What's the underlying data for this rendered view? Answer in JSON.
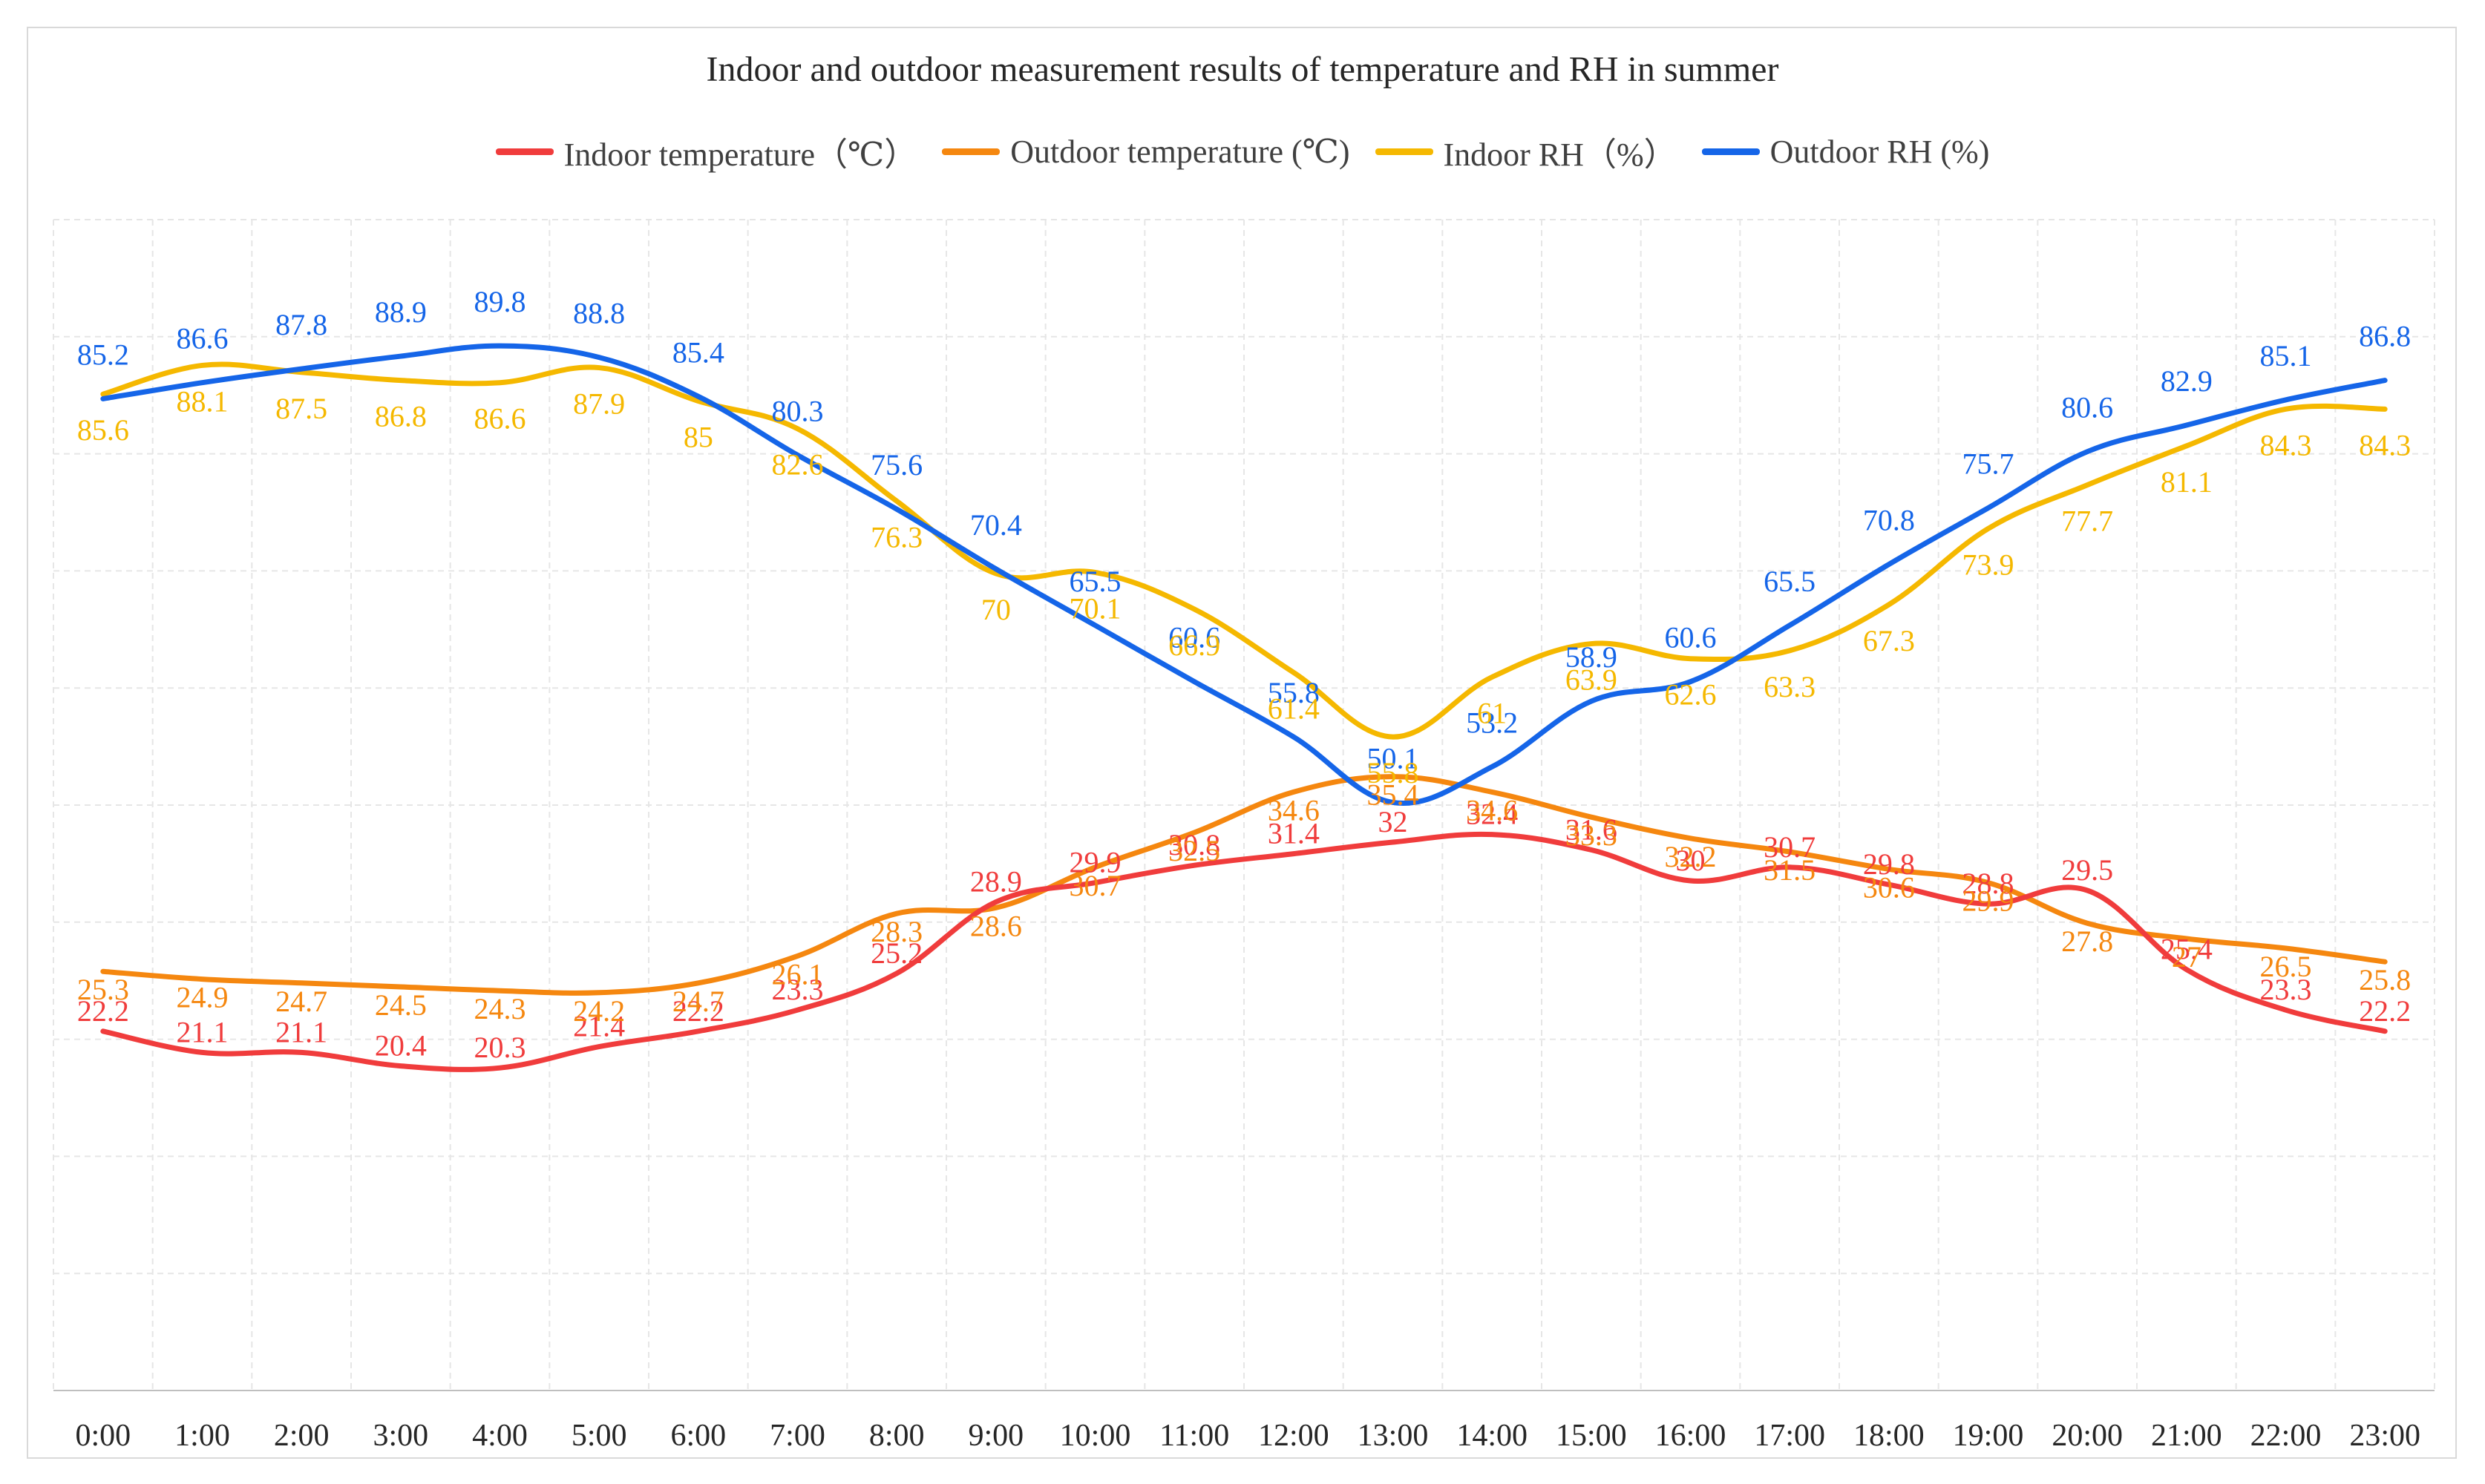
{
  "chart_data": {
    "type": "line",
    "title": "Indoor and outdoor measurement results of temperature and RH in summer",
    "xlabel": "",
    "ylabel": "",
    "categories": [
      "0:00",
      "1:00",
      "2:00",
      "3:00",
      "4:00",
      "5:00",
      "6:00",
      "7:00",
      "8:00",
      "9:00",
      "10:00",
      "11:00",
      "12:00",
      "13:00",
      "14:00",
      "15:00",
      "16:00",
      "17:00",
      "18:00",
      "19:00",
      "20:00",
      "21:00",
      "22:00",
      "23:00"
    ],
    "series": [
      {
        "name": "Indoor temperature（℃）",
        "color": "#f03c3c",
        "values": [
          22.2,
          21.1,
          21.1,
          20.4,
          20.3,
          21.4,
          22.2,
          23.3,
          25.2,
          28.9,
          29.9,
          30.8,
          31.4,
          32,
          32.4,
          31.6,
          30,
          30.7,
          29.8,
          28.8,
          29.5,
          25.4,
          23.3,
          22.2
        ]
      },
      {
        "name": "Outdoor temperature (℃)",
        "color": "#f5870f",
        "values": [
          25.3,
          24.9,
          24.7,
          24.5,
          24.3,
          24.2,
          24.7,
          26.1,
          28.3,
          28.6,
          30.7,
          32.5,
          34.6,
          35.4,
          34.6,
          33.3,
          32.2,
          31.5,
          30.6,
          29.9,
          27.8,
          27,
          26.5,
          25.8
        ]
      },
      {
        "name": "Indoor RH（%）",
        "color": "#f5b800",
        "values": [
          85.6,
          88.1,
          87.5,
          86.8,
          86.6,
          87.9,
          85,
          82.6,
          76.3,
          70,
          70.1,
          66.9,
          61.4,
          55.8,
          61,
          63.9,
          62.6,
          63.3,
          67.3,
          73.9,
          77.7,
          81.1,
          84.3,
          84.3
        ]
      },
      {
        "name": "Outdoor RH (%)",
        "color": "#1565e8",
        "values": [
          85.2,
          86.6,
          87.8,
          88.9,
          89.8,
          88.8,
          85.4,
          80.3,
          75.6,
          70.4,
          65.5,
          60.6,
          55.8,
          50.1,
          53.2,
          58.9,
          60.6,
          65.5,
          70.8,
          75.7,
          80.6,
          82.9,
          85.1,
          86.8
        ]
      }
    ],
    "grid": true,
    "legend": "top-center"
  }
}
